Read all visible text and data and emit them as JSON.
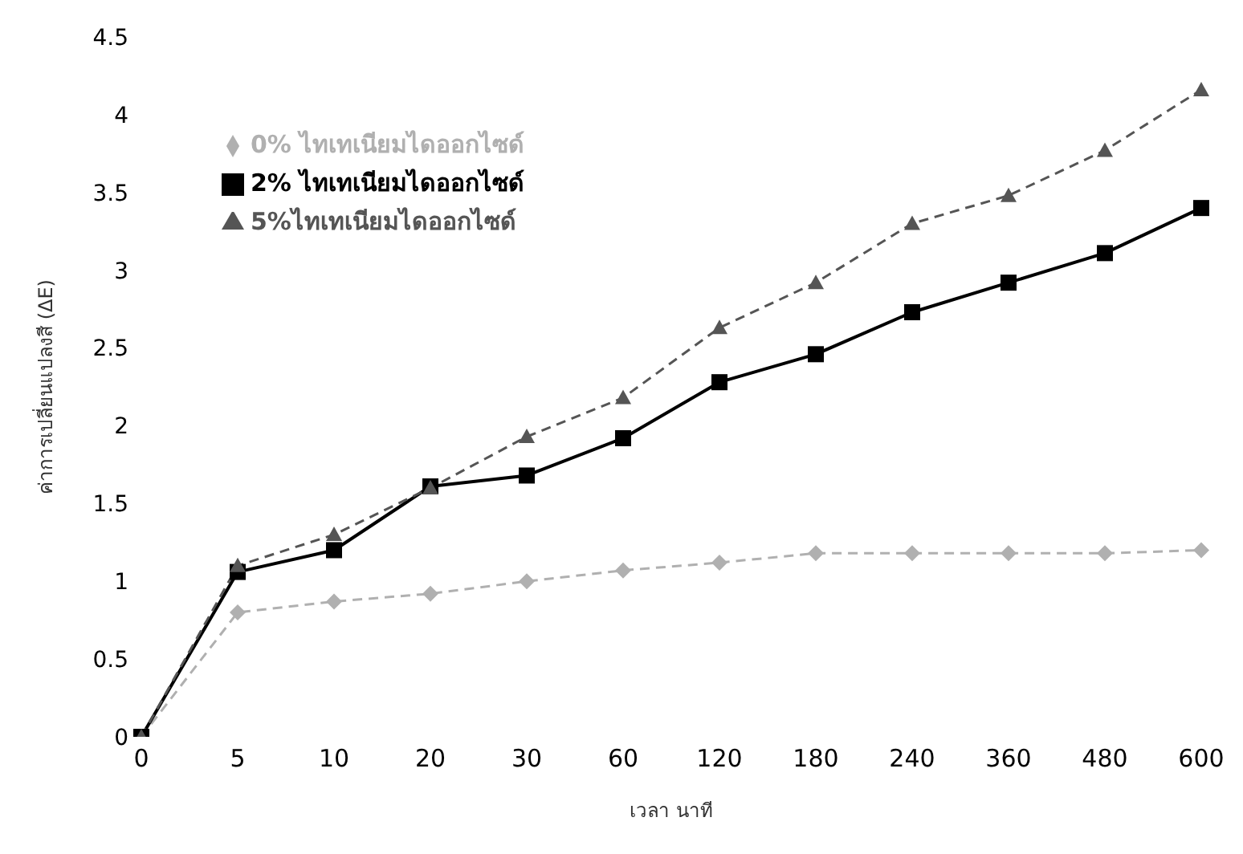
{
  "chart_data": {
    "type": "line",
    "xlabel": "เวลา นาที",
    "ylabel": "ค่าการเปลี่ยนแปลงสี (ΔE)",
    "categories": [
      "0",
      "5",
      "10",
      "20",
      "30",
      "60",
      "120",
      "180",
      "240",
      "360",
      "480",
      "600"
    ],
    "ylim": [
      0,
      4.5
    ],
    "yticks": [
      0,
      0.5,
      1,
      1.5,
      2,
      2.5,
      3,
      3.5,
      4,
      4.5
    ],
    "grid": false,
    "legend": "top left",
    "series": [
      {
        "name": "0% ไทเทเนียมไดออกไซด์",
        "color": "#b0b0b0",
        "marker": "diamond",
        "line_style": "dashed",
        "values": [
          0,
          0.8,
          0.87,
          0.92,
          1.0,
          1.07,
          1.12,
          1.18,
          1.18,
          1.18,
          1.18,
          1.2
        ]
      },
      {
        "name": "2% ไทเทเนียมไดออกไซด์",
        "color": "#000000",
        "marker": "square",
        "line_style": "solid",
        "values": [
          0,
          1.06,
          1.2,
          1.61,
          1.68,
          1.92,
          2.28,
          2.46,
          2.73,
          2.92,
          3.11,
          3.4
        ]
      },
      {
        "name": "5%ไทเทเนียมไดออกไซด์",
        "color": "#555555",
        "marker": "triangle",
        "line_style": "dashed",
        "values": [
          0,
          1.1,
          1.3,
          1.6,
          1.93,
          2.18,
          2.63,
          2.92,
          3.3,
          3.48,
          3.77,
          4.16
        ]
      }
    ]
  }
}
